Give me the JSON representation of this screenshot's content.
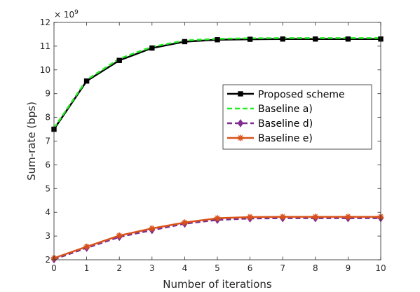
{
  "chart_data": {
    "type": "line",
    "xlabel": "Number of iterations",
    "ylabel": "Sum-rate (bps)",
    "y_exponent_base": "× 10",
    "y_exponent_power": "9",
    "xlim": [
      0,
      10
    ],
    "ylim": [
      2,
      12
    ],
    "x_ticks": [
      0,
      1,
      2,
      3,
      4,
      5,
      6,
      7,
      8,
      9,
      10
    ],
    "y_ticks": [
      2,
      3,
      4,
      5,
      6,
      7,
      8,
      9,
      10,
      11,
      12
    ],
    "grid": false,
    "legend_position": "right-middle",
    "x": [
      0,
      1,
      2,
      3,
      4,
      5,
      6,
      7,
      8,
      9,
      10
    ],
    "series": [
      {
        "name": "Proposed scheme",
        "color": "#000000",
        "line_style": "solid",
        "marker": "square",
        "values": [
          7.5,
          9.53,
          10.4,
          10.92,
          11.19,
          11.27,
          11.29,
          11.3,
          11.3,
          11.3,
          11.3
        ]
      },
      {
        "name": "Baseline a)",
        "color": "#22ee22",
        "line_style": "dashed",
        "marker": "none",
        "values": [
          7.55,
          9.58,
          10.47,
          10.97,
          11.24,
          11.31,
          11.33,
          11.34,
          11.34,
          11.34,
          11.34
        ]
      },
      {
        "name": "Baseline d)",
        "color": "#7e2f8e",
        "line_style": "dashed",
        "marker": "diamond",
        "values": [
          2.02,
          2.5,
          2.96,
          3.25,
          3.52,
          3.68,
          3.74,
          3.75,
          3.75,
          3.75,
          3.75
        ]
      },
      {
        "name": "Baseline e)",
        "color": "#d95319",
        "line_style": "solid",
        "marker": "star",
        "values": [
          2.07,
          2.55,
          3.02,
          3.32,
          3.57,
          3.75,
          3.8,
          3.81,
          3.81,
          3.81,
          3.81
        ]
      }
    ]
  }
}
